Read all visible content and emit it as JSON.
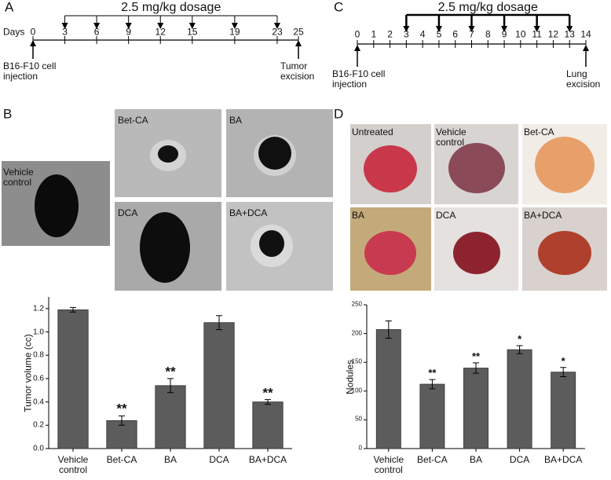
{
  "panels": [
    "A",
    "B",
    "C",
    "D"
  ],
  "timelines": [
    {
      "dosage": "2.5 mg/kg dosage",
      "axis_label": "Days",
      "xlim": [
        0,
        25
      ],
      "days": [
        0,
        3,
        6,
        9,
        12,
        15,
        19,
        23,
        25
      ],
      "dose_days": [
        3,
        6,
        9,
        12,
        15,
        19,
        23
      ],
      "start_label": "B16-F10 cell injection",
      "end_label": "Tumor excision"
    },
    {
      "dosage": "2.5 mg/kg dosage",
      "xlim": [
        0,
        14
      ],
      "days": [
        0,
        1,
        2,
        3,
        4,
        5,
        6,
        7,
        8,
        9,
        10,
        11,
        12,
        13,
        14
      ],
      "dose_days": [
        3,
        5,
        7,
        9,
        11,
        13
      ],
      "start_label": "B16-F10 cell injection",
      "end_label": "Lung excision"
    }
  ],
  "photos_b": [
    "Vehicle control",
    "Bet-CA",
    "BA",
    "DCA",
    "BA+DCA"
  ],
  "photos_d": [
    "Untreated",
    "Vehicle control",
    "Bet-CA",
    "BA",
    "DCA",
    "BA+DCA"
  ],
  "chart_data": [
    {
      "type": "bar",
      "ylabel": "Tumor volume (cc)",
      "categories": [
        "Vehicle control",
        "Bet-CA",
        "BA",
        "DCA",
        "BA+DCA"
      ],
      "values": [
        1.19,
        0.24,
        0.54,
        1.08,
        0.4
      ],
      "errors": [
        0.02,
        0.04,
        0.06,
        0.06,
        0.02
      ],
      "significance": [
        null,
        "**",
        "**",
        null,
        "**"
      ],
      "color": "#5c5c5c",
      "ylim": [
        0,
        1.3
      ],
      "yticks": [
        {
          "value": 0,
          "label": "0.0"
        },
        0.2,
        0.4,
        0.6,
        0.8,
        {
          "value": 1,
          "label": "1.0"
        },
        1.2
      ]
    },
    {
      "type": "bar",
      "ylabel": "Nodules",
      "categories": [
        "Vehicle control",
        "Bet-CA",
        "BA",
        "DCA",
        "BA+DCA"
      ],
      "values": [
        207,
        112,
        140,
        172,
        133
      ],
      "errors": [
        15,
        8,
        9,
        7,
        8
      ],
      "significance": [
        null,
        "**",
        "**",
        "*",
        "*"
      ],
      "color": "#5c5c5c",
      "ylim": [
        0,
        250
      ],
      "yticks": [
        0,
        50,
        100,
        150,
        200,
        250
      ]
    }
  ]
}
